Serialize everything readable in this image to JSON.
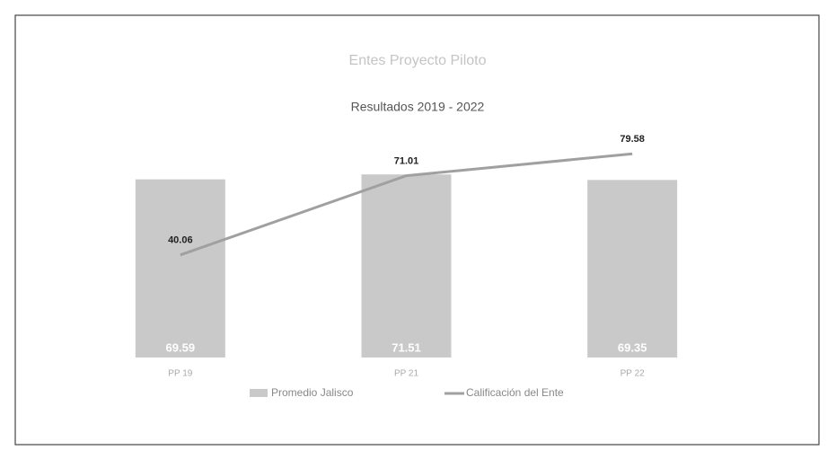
{
  "chart_data": {
    "type": "bar_line",
    "title": "Entes Proyecto Piloto",
    "subtitle": "Resultados 2019 - 2022",
    "categories": [
      "PP 19",
      "PP 21",
      "PP 22"
    ],
    "series": [
      {
        "name": "Promedio Jalisco",
        "type": "bar",
        "color": "#c9c9c9",
        "values": [
          69.59,
          71.51,
          69.35
        ]
      },
      {
        "name": "Calificación del Ente",
        "type": "line",
        "color": "#a0a0a0",
        "values": [
          40.06,
          71.01,
          79.58
        ]
      }
    ],
    "ylim": [
      0,
      100
    ],
    "legend": "bottom"
  }
}
